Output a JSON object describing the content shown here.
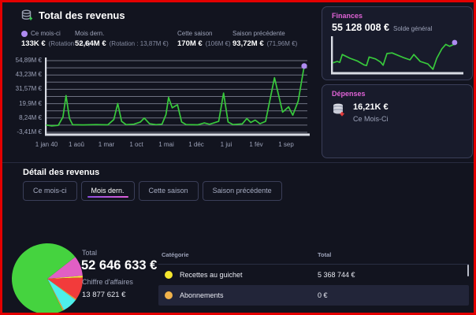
{
  "header": {
    "title": "Total des revenus",
    "stats": [
      {
        "label": "Ce mois-ci",
        "value": "133K €",
        "extra": "(Rotation : 0 €)",
        "dot_color": "#AE8BF0"
      },
      {
        "label": "Mois dern.",
        "value": "52,64M €",
        "extra": "(Rotation : 13,87M €)"
      },
      {
        "label": "Cette saison",
        "value": "170M €",
        "extra": "(106M €)"
      },
      {
        "label": "Saison précédente",
        "value": "93,72M €",
        "extra": "(71,96M €)"
      }
    ]
  },
  "finances": {
    "title": "Finances",
    "value": "55 128 008 €",
    "caption": "Solde général"
  },
  "depenses": {
    "title": "Dépenses",
    "value": "16,21K €",
    "caption": "Ce Mois-Ci"
  },
  "detail": {
    "title": "Détail des revenus",
    "tabs": [
      {
        "label": "Ce mois-ci",
        "active": false
      },
      {
        "label": "Mois dern.",
        "active": true
      },
      {
        "label": "Cette saison",
        "active": false
      },
      {
        "label": "Saison précédente",
        "active": false
      }
    ]
  },
  "summary": {
    "total_label": "Total",
    "total_value": "52 646 633 €",
    "turnover_label": "Chiffre d'affaires",
    "turnover_value": "13 877 621 €"
  },
  "table": {
    "headers": [
      "Catégorie",
      "Total"
    ],
    "rows": [
      {
        "dot_color": "#F5E62E",
        "label": "Recettes au guichet",
        "value": "5 368 744 €"
      },
      {
        "dot_color": "#F0B24B",
        "label": "Abonnements",
        "value": "0 €"
      }
    ]
  },
  "colors": {
    "accent_magenta": "#DE62D5",
    "line_green": "#38C93C",
    "marker_purple": "#AE8BF0",
    "grid": "#9FA5B8",
    "axis": "#D9DCE4"
  },
  "chart_data": [
    {
      "name": "revenus-mensuels",
      "type": "line",
      "title": "Total des revenus (mensuel)",
      "ylabels": [
        "54,89M €",
        "43,23M €",
        "31,57M €",
        "19,9M €",
        "8,24M €",
        "-3,41M €"
      ],
      "ylim": [
        -3.41,
        54.89
      ],
      "xlabels": [
        "1 jan 40",
        "1 aoû",
        "1 mar",
        "1 oct",
        "1 mai",
        "1 déc",
        "1 jui",
        "1 fév",
        "1 sep"
      ],
      "unit": "M EUR",
      "series": [
        {
          "name": "Revenus",
          "color": "#38C93C",
          "points": [
            [
              0,
              2.5
            ],
            [
              2,
              1.8
            ],
            [
              4.5,
              2.2
            ],
            [
              6.3,
              9
            ],
            [
              7.5,
              26.5
            ],
            [
              8.8,
              8
            ],
            [
              10,
              2.8
            ],
            [
              14,
              2.6
            ],
            [
              19,
              2.9
            ],
            [
              23.5,
              2.7
            ],
            [
              25.8,
              7
            ],
            [
              27.3,
              20
            ],
            [
              28.8,
              5.5
            ],
            [
              30.5,
              2.8
            ],
            [
              33.5,
              3.2
            ],
            [
              36,
              5
            ],
            [
              37.5,
              8.2
            ],
            [
              39.5,
              3.6
            ],
            [
              42,
              2.8
            ],
            [
              44.3,
              3.2
            ],
            [
              45.8,
              11
            ],
            [
              46.8,
              25
            ],
            [
              48.2,
              16.5
            ],
            [
              50.2,
              19
            ],
            [
              51.8,
              5
            ],
            [
              53.5,
              2.9
            ],
            [
              58,
              2.7
            ],
            [
              60.5,
              4.2
            ],
            [
              62.5,
              3.1
            ],
            [
              66,
              5.5
            ],
            [
              67.9,
              28.5
            ],
            [
              69.6,
              5
            ],
            [
              71.5,
              2.9
            ],
            [
              75,
              3.4
            ],
            [
              76.8,
              7.8
            ],
            [
              78.3,
              4.6
            ],
            [
              80,
              6.5
            ],
            [
              81.8,
              3.6
            ],
            [
              84,
              5.5
            ],
            [
              87.4,
              41
            ],
            [
              90.5,
              13
            ],
            [
              92.8,
              17.3
            ],
            [
              94.4,
              10.5
            ],
            [
              96.5,
              22
            ],
            [
              98.8,
              50.5
            ]
          ]
        }
      ],
      "endpoint_marker_color": "#AE8BF0",
      "grid": true
    },
    {
      "name": "solde-general",
      "type": "line",
      "title": "Finances — Solde général",
      "color": "#38C93C",
      "endpoint_marker_color": "#AE8BF0",
      "points_pct": [
        [
          0,
          26
        ],
        [
          3,
          30
        ],
        [
          5,
          27
        ],
        [
          7,
          52
        ],
        [
          13,
          40
        ],
        [
          19,
          31
        ],
        [
          24,
          19
        ],
        [
          26,
          17
        ],
        [
          28,
          44
        ],
        [
          33,
          38
        ],
        [
          37,
          28
        ],
        [
          39,
          18
        ],
        [
          42,
          55
        ],
        [
          46,
          57
        ],
        [
          55,
          42
        ],
        [
          60,
          35
        ],
        [
          63,
          52
        ],
        [
          68,
          30
        ],
        [
          74,
          22
        ],
        [
          78,
          5
        ],
        [
          81,
          40
        ],
        [
          85,
          70
        ],
        [
          88,
          84
        ],
        [
          91,
          78
        ],
        [
          95,
          85
        ]
      ]
    },
    {
      "name": "repartition-revenus",
      "type": "pie",
      "title": "Détail des revenus — Mois dern.",
      "start_angle_deg": -38,
      "slices": [
        {
          "color": "#E15FC4",
          "deg": 33
        },
        {
          "color": "#EFE93C",
          "deg": 3
        },
        {
          "color": "#F23B3B",
          "deg": 37
        },
        {
          "color": "#F2A13C",
          "deg": 2
        },
        {
          "color": "#4EEFEA",
          "deg": 25
        },
        {
          "color": "#F2A13C",
          "deg": 2
        },
        {
          "color": "#45D33F",
          "deg": 258
        }
      ]
    }
  ]
}
